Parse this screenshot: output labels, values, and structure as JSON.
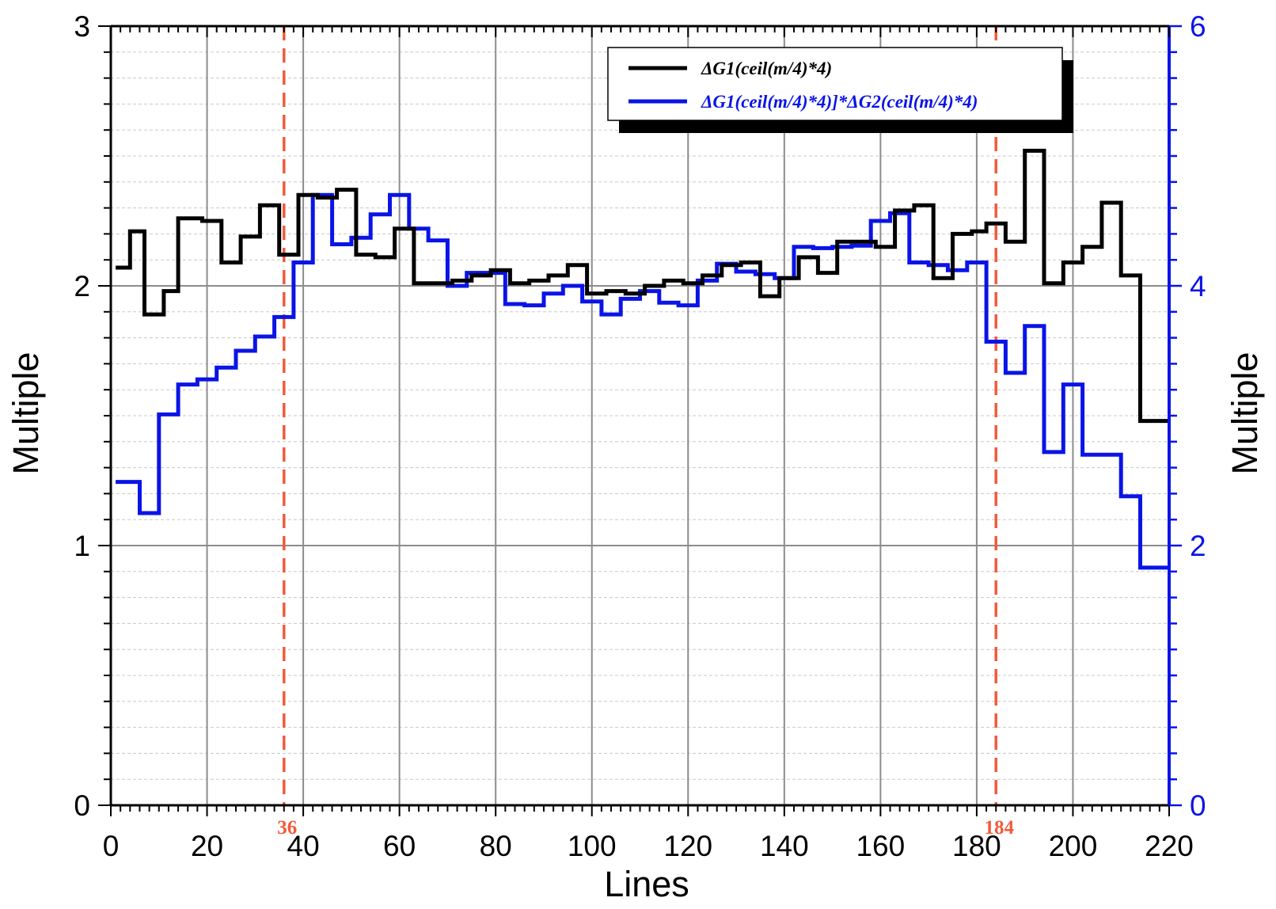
{
  "chart_data": {
    "type": "line",
    "xlabel": "Lines",
    "ylabel_left": "Multiple",
    "ylabel_right": "Multiple",
    "xlim": [
      0,
      220
    ],
    "ylim_left": [
      0,
      3
    ],
    "ylim_right": [
      0,
      6
    ],
    "x_ticks": [
      0,
      20,
      40,
      60,
      80,
      100,
      120,
      140,
      160,
      180,
      200,
      220
    ],
    "y_ticks_left": [
      0,
      1,
      2,
      3
    ],
    "y_ticks_right": [
      0,
      2,
      4,
      6
    ],
    "grid": true,
    "legend_position": "top-right",
    "colors": {
      "series1": "#000000",
      "series2": "#0a14e6",
      "markers": "#f25a3c",
      "right_axis": "#0a14e6"
    },
    "vlines": [
      {
        "x": 36,
        "label": "36"
      },
      {
        "x": 184,
        "label": "184"
      }
    ],
    "series": [
      {
        "name": "ΔG1(ceil(m/4)*4)",
        "axis": "left",
        "x": [
          1,
          4,
          7,
          11,
          14,
          19,
          23,
          27,
          31,
          35,
          39,
          43,
          47,
          51,
          55,
          59,
          63,
          67,
          71,
          75,
          79,
          83,
          87,
          91,
          95,
          99,
          103,
          107,
          111,
          115,
          119,
          123,
          127,
          131,
          135,
          139,
          143,
          147,
          151,
          155,
          159,
          163,
          167,
          171,
          175,
          179,
          182,
          186,
          190,
          194,
          198,
          202,
          206,
          210,
          214,
          218,
          220
        ],
        "y": [
          2.07,
          2.21,
          1.89,
          1.98,
          2.26,
          2.25,
          2.09,
          2.19,
          2.31,
          2.12,
          2.35,
          2.34,
          2.37,
          2.12,
          2.11,
          2.22,
          2.01,
          2.01,
          2.02,
          2.04,
          2.06,
          2.01,
          2.02,
          2.04,
          2.08,
          1.97,
          1.98,
          1.97,
          2.0,
          2.02,
          2.01,
          2.04,
          2.08,
          2.09,
          1.96,
          2.03,
          2.11,
          2.05,
          2.17,
          2.17,
          2.15,
          2.29,
          2.31,
          2.03,
          2.2,
          2.21,
          2.24,
          2.17,
          2.52,
          2.01,
          2.09,
          2.15,
          2.32,
          2.04,
          1.48,
          1.48,
          1.48
        ]
      },
      {
        "name": "ΔG1(ceil(m/4)*4)]*ΔG2(ceil(m/4)*4)",
        "axis": "right",
        "x": [
          1,
          6,
          10,
          14,
          18,
          22,
          26,
          30,
          34,
          38,
          42,
          46,
          50,
          54,
          58,
          62,
          66,
          70,
          74,
          78,
          82,
          86,
          90,
          94,
          98,
          102,
          106,
          110,
          114,
          118,
          122,
          126,
          130,
          134,
          138,
          142,
          146,
          150,
          154,
          158,
          162,
          166,
          170,
          174,
          178,
          182,
          186,
          190,
          194,
          198,
          202,
          206,
          210,
          214,
          218,
          220
        ],
        "y": [
          2.49,
          2.25,
          3.01,
          3.24,
          3.28,
          3.37,
          3.5,
          3.61,
          3.76,
          4.18,
          4.7,
          4.32,
          4.37,
          4.55,
          4.7,
          4.44,
          4.35,
          4.0,
          4.1,
          4.1,
          3.86,
          3.85,
          3.94,
          4.0,
          3.88,
          3.78,
          3.9,
          3.96,
          3.87,
          3.85,
          4.04,
          4.17,
          4.11,
          4.09,
          4.06,
          4.3,
          4.29,
          4.3,
          4.31,
          4.5,
          4.56,
          4.18,
          4.16,
          4.12,
          4.18,
          3.57,
          3.33,
          3.69,
          2.72,
          3.24,
          2.7,
          2.7,
          2.38,
          1.83,
          1.83,
          1.83
        ]
      }
    ]
  }
}
